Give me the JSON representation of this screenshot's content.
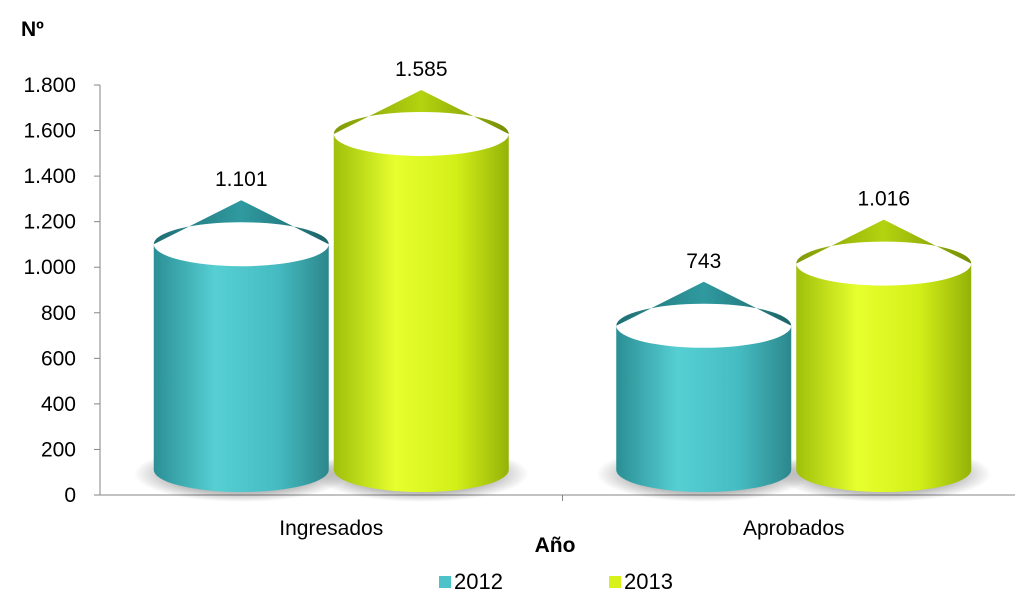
{
  "chart_data": {
    "type": "bar",
    "style": "cylinder-3d",
    "title": "",
    "ylabel": "Nº",
    "xlabel": "Año",
    "ylim": [
      0,
      1800
    ],
    "yticks": [
      0,
      200,
      400,
      600,
      800,
      1000,
      1200,
      1400,
      1600,
      1800
    ],
    "ytick_labels": [
      "0",
      "200",
      "400",
      "600",
      "800",
      "1.000",
      "1.200",
      "1.400",
      "1.600",
      "1.800"
    ],
    "categories": [
      "Ingresados",
      "Aprobados"
    ],
    "series": [
      {
        "name": "2012",
        "color": "#4bc3c8",
        "values": [
          1101,
          743
        ],
        "labels": [
          "1.101",
          "743"
        ]
      },
      {
        "name": "2013",
        "color": "#d7f21a",
        "values": [
          1585,
          1016
        ],
        "labels": [
          "1.585",
          "1.016"
        ]
      }
    ],
    "legend_position": "bottom",
    "grid": false
  }
}
